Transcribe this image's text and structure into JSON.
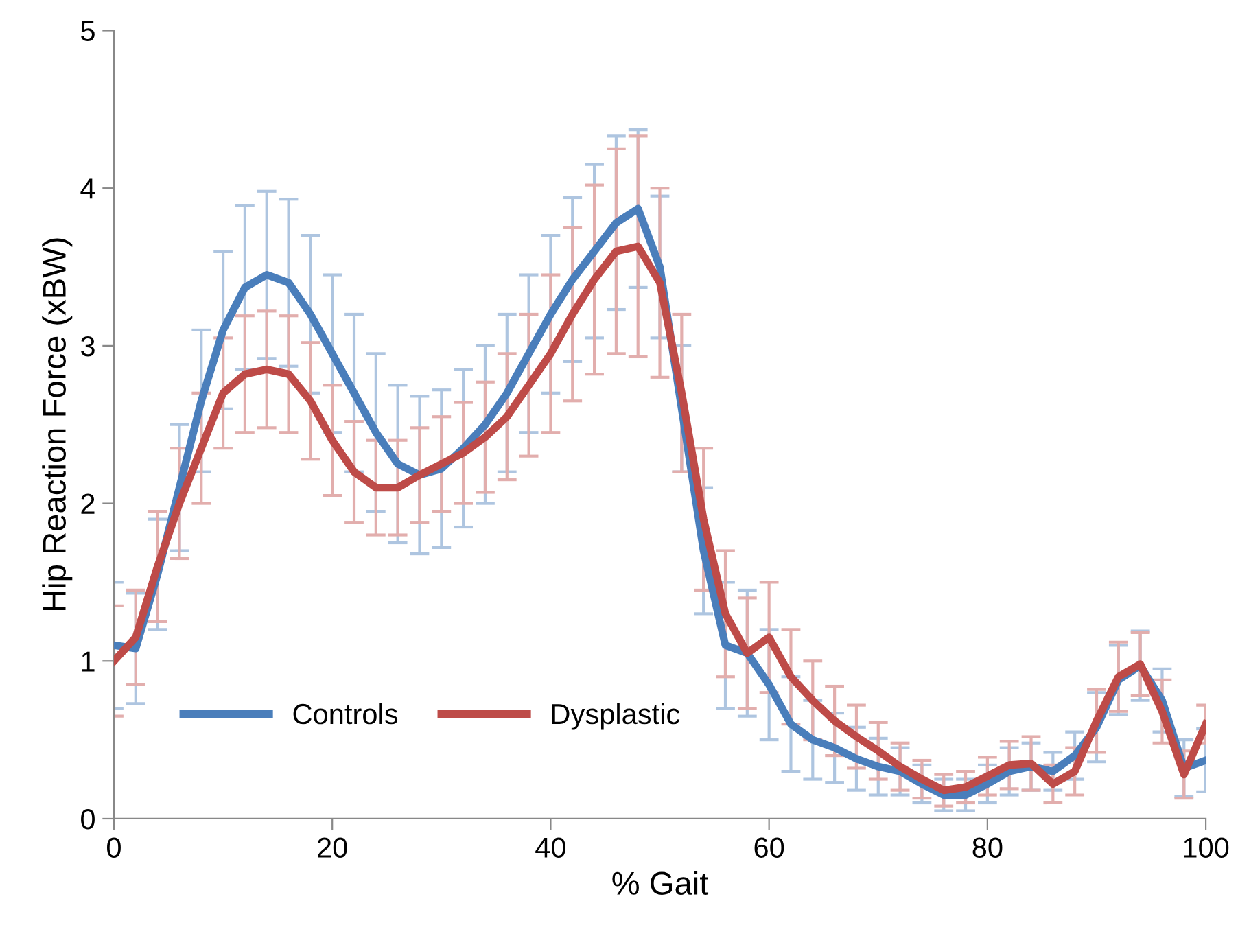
{
  "chart_data": {
    "type": "line",
    "xlabel": "% Gait",
    "ylabel": "Hip Reaction Force (xBW)",
    "x": [
      0,
      2,
      4,
      6,
      8,
      10,
      12,
      14,
      16,
      18,
      20,
      22,
      24,
      26,
      28,
      30,
      32,
      34,
      36,
      38,
      40,
      42,
      44,
      46,
      48,
      50,
      52,
      54,
      56,
      58,
      60,
      62,
      64,
      66,
      68,
      70,
      72,
      74,
      76,
      78,
      80,
      82,
      84,
      86,
      88,
      90,
      92,
      94,
      96,
      98,
      100
    ],
    "series": [
      {
        "name": "Controls",
        "color": "#4a7ebb",
        "values": [
          1.1,
          1.08,
          1.55,
          2.1,
          2.65,
          3.1,
          3.37,
          3.45,
          3.4,
          3.2,
          2.95,
          2.7,
          2.45,
          2.25,
          2.18,
          2.22,
          2.35,
          2.5,
          2.7,
          2.95,
          3.2,
          3.42,
          3.6,
          3.78,
          3.87,
          3.5,
          2.6,
          1.7,
          1.1,
          1.05,
          0.85,
          0.6,
          0.5,
          0.45,
          0.38,
          0.33,
          0.3,
          0.22,
          0.15,
          0.15,
          0.22,
          0.3,
          0.33,
          0.3,
          0.4,
          0.58,
          0.88,
          0.97,
          0.75,
          0.32,
          0.37
        ],
        "errors": [
          0.4,
          0.35,
          0.35,
          0.4,
          0.45,
          0.5,
          0.52,
          0.53,
          0.53,
          0.5,
          0.5,
          0.5,
          0.5,
          0.5,
          0.5,
          0.5,
          0.5,
          0.5,
          0.5,
          0.5,
          0.5,
          0.52,
          0.55,
          0.55,
          0.5,
          0.45,
          0.4,
          0.4,
          0.4,
          0.4,
          0.35,
          0.3,
          0.25,
          0.22,
          0.2,
          0.18,
          0.15,
          0.12,
          0.1,
          0.1,
          0.12,
          0.15,
          0.15,
          0.12,
          0.15,
          0.22,
          0.22,
          0.22,
          0.2,
          0.18,
          0.2
        ]
      },
      {
        "name": "Dysplastic",
        "color": "#be4b48",
        "values": [
          1.0,
          1.15,
          1.6,
          2.0,
          2.35,
          2.7,
          2.82,
          2.85,
          2.82,
          2.65,
          2.4,
          2.2,
          2.1,
          2.1,
          2.18,
          2.25,
          2.32,
          2.42,
          2.55,
          2.75,
          2.95,
          3.2,
          3.42,
          3.6,
          3.63,
          3.4,
          2.7,
          1.9,
          1.3,
          1.05,
          1.15,
          0.9,
          0.75,
          0.62,
          0.52,
          0.43,
          0.33,
          0.25,
          0.18,
          0.2,
          0.27,
          0.34,
          0.35,
          0.22,
          0.3,
          0.62,
          0.9,
          0.98,
          0.68,
          0.28,
          0.6
        ],
        "errors": [
          0.35,
          0.3,
          0.35,
          0.35,
          0.35,
          0.35,
          0.37,
          0.37,
          0.37,
          0.37,
          0.35,
          0.32,
          0.3,
          0.3,
          0.3,
          0.3,
          0.32,
          0.35,
          0.4,
          0.45,
          0.5,
          0.55,
          0.6,
          0.65,
          0.7,
          0.6,
          0.5,
          0.45,
          0.4,
          0.35,
          0.35,
          0.3,
          0.25,
          0.22,
          0.2,
          0.18,
          0.15,
          0.12,
          0.1,
          0.1,
          0.12,
          0.15,
          0.17,
          0.12,
          0.15,
          0.2,
          0.22,
          0.2,
          0.2,
          0.15,
          0.12
        ]
      }
    ],
    "xlim": [
      0,
      100
    ],
    "xticks": [
      0,
      20,
      40,
      60,
      80,
      100
    ],
    "ylim": [
      0,
      5
    ],
    "yticks": [
      0,
      1,
      2,
      3,
      4,
      5
    ],
    "legend": "lower left",
    "grid": false,
    "marker": "none",
    "line_style": "solid"
  }
}
